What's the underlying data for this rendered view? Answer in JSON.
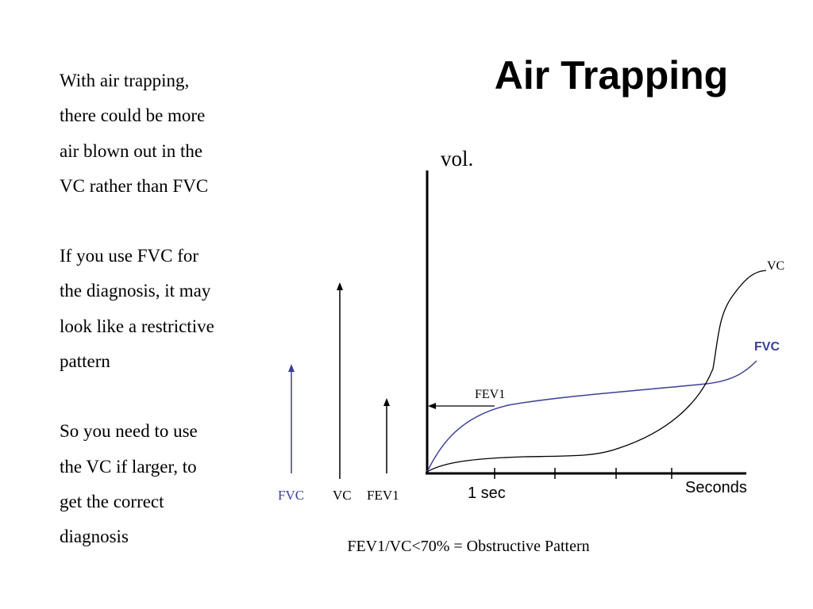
{
  "slide": {
    "title": "Air Trapping",
    "paragraphs": [
      [
        "With air trapping,",
        "there could be more",
        "air blown out in the",
        "VC rather than FVC"
      ],
      [
        "If you use FVC for",
        "the diagnosis, it may",
        "look like a restrictive",
        "pattern"
      ],
      [
        "So you need to use",
        "the VC if larger, to",
        "get the correct",
        "diagnosis"
      ]
    ],
    "footer": "FEV1/VC<70% = Obstructive Pattern"
  },
  "diagram": {
    "y_axis_label": "vol.",
    "x_axis_label": "Seconds",
    "tick_label": "1 sec",
    "curve_labels": {
      "vc": "VC",
      "fvc": "FVC",
      "fev1": "FEV1"
    },
    "bars": [
      {
        "label": "FVC",
        "color": "#3a3f9a"
      },
      {
        "label": "VC",
        "color": "#000000"
      },
      {
        "label": "FEV1",
        "color": "#000000"
      }
    ],
    "colors": {
      "fvc": "#3a3f9a",
      "vc": "#000000",
      "axes": "#000000"
    }
  }
}
